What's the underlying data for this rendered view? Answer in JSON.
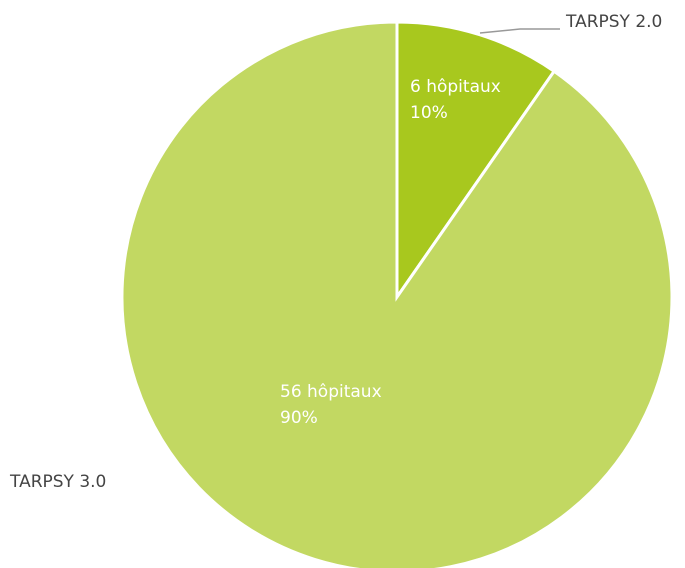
{
  "chart_data": {
    "type": "pie",
    "categories": [
      "TARPSY 2.0",
      "TARPSY 3.0"
    ],
    "values": [
      6,
      56
    ],
    "value_labels": [
      "6 hôpitaux",
      "56 hôpitaux"
    ],
    "percents": [
      10,
      90
    ],
    "percent_labels": [
      "10%",
      "90%"
    ],
    "colors": [
      "#a8c81e",
      "#c2d862"
    ]
  }
}
